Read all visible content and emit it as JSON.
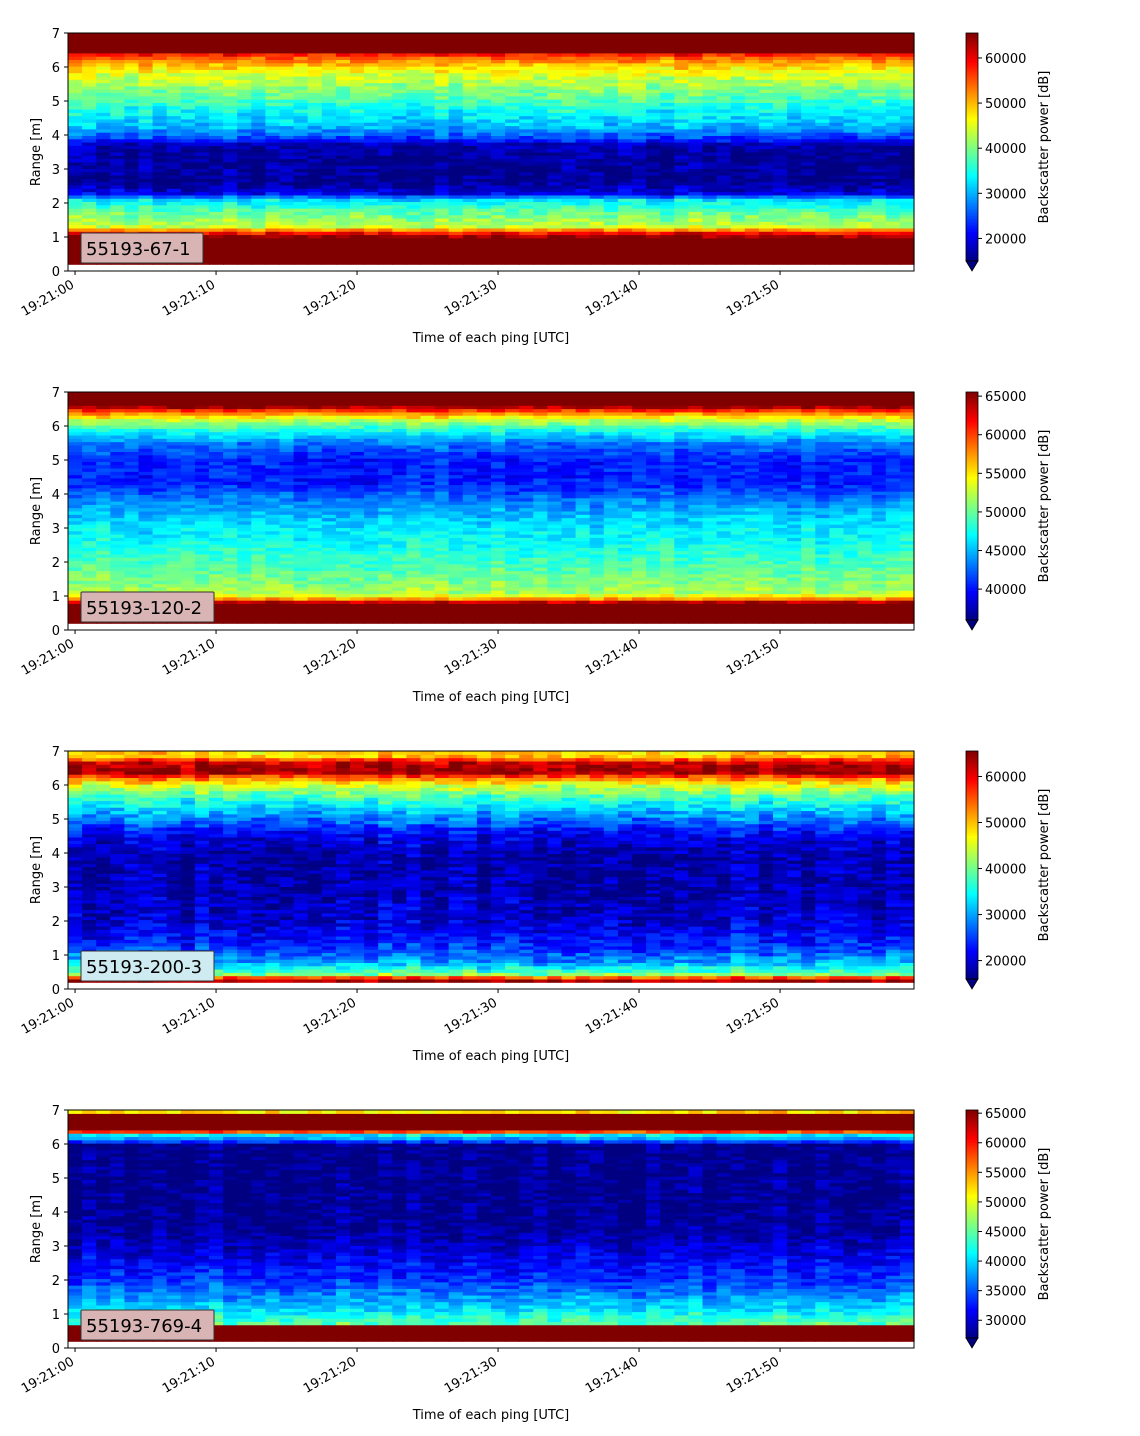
{
  "chart_data": [
    {
      "type": "heatmap",
      "badge": "55193-67-1",
      "badge_color": "#d8b4b4",
      "xlabel": "Time of each ping [UTC]",
      "ylabel": "Range [m]",
      "ylim": [
        0,
        7
      ],
      "yticks": [
        "0",
        "1",
        "2",
        "3",
        "4",
        "5",
        "6",
        "7"
      ],
      "xticks": [
        "19:21:00",
        "19:21:10",
        "19:21:20",
        "19:21:30",
        "19:21:40",
        "19:21:50"
      ],
      "colorbar_label": "Backscatter power [dB]",
      "colorbar_range": [
        15000,
        65535
      ],
      "colorbar_ticks": [
        20000,
        30000,
        40000,
        50000,
        60000
      ],
      "colorbar_tick_labels": [
        "20000",
        "30000",
        "40000",
        "50000",
        "60000"
      ],
      "profile": [
        [
          0.2,
          65535
        ],
        [
          0.3,
          65535
        ],
        [
          1.0,
          65535
        ],
        [
          1.15,
          58000
        ],
        [
          1.3,
          44000
        ],
        [
          1.8,
          38000
        ],
        [
          2.1,
          33000
        ],
        [
          2.3,
          20000
        ],
        [
          2.6,
          16000
        ],
        [
          3.2,
          16000
        ],
        [
          3.7,
          17000
        ],
        [
          3.9,
          24000
        ],
        [
          4.2,
          30000
        ],
        [
          4.8,
          35000
        ],
        [
          5.3,
          40000
        ],
        [
          5.8,
          45000
        ],
        [
          6.1,
          50000
        ],
        [
          6.35,
          56000
        ],
        [
          6.45,
          65535
        ],
        [
          7.0,
          65535
        ]
      ],
      "noise": 5500
    },
    {
      "type": "heatmap",
      "badge": "55193-120-2",
      "badge_color": "#d8b4b4",
      "xlabel": "Time of each ping [UTC]",
      "ylabel": "Range [m]",
      "ylim": [
        0,
        7
      ],
      "yticks": [
        "0",
        "1",
        "2",
        "3",
        "4",
        "5",
        "6",
        "7"
      ],
      "xticks": [
        "19:21:00",
        "19:21:10",
        "19:21:20",
        "19:21:30",
        "19:21:40",
        "19:21:50"
      ],
      "colorbar_label": "Backscatter power [dB]",
      "colorbar_range": [
        36000,
        65535
      ],
      "colorbar_ticks": [
        40000,
        45000,
        50000,
        55000,
        60000,
        65000
      ],
      "colorbar_tick_labels": [
        "40000",
        "45000",
        "50000",
        "55000",
        "60000",
        "65000"
      ],
      "profile": [
        [
          0.2,
          65535
        ],
        [
          0.25,
          65535
        ],
        [
          0.8,
          65535
        ],
        [
          0.95,
          56000
        ],
        [
          1.1,
          52000
        ],
        [
          1.8,
          49500
        ],
        [
          2.5,
          47500
        ],
        [
          3.2,
          46000
        ],
        [
          3.8,
          43500
        ],
        [
          4.3,
          40500
        ],
        [
          5.0,
          40500
        ],
        [
          5.5,
          43000
        ],
        [
          5.9,
          48000
        ],
        [
          6.2,
          53000
        ],
        [
          6.4,
          58000
        ],
        [
          6.6,
          65535
        ],
        [
          7.0,
          65535
        ]
      ],
      "noise": 2800
    },
    {
      "type": "heatmap",
      "badge": "55193-200-3",
      "badge_color": "#cdebf0",
      "xlabel": "Time of each ping [UTC]",
      "ylabel": "Range [m]",
      "ylim": [
        0,
        7
      ],
      "yticks": [
        "0",
        "1",
        "2",
        "3",
        "4",
        "5",
        "6",
        "7"
      ],
      "xticks": [
        "19:21:00",
        "19:21:10",
        "19:21:20",
        "19:21:30",
        "19:21:40",
        "19:21:50"
      ],
      "colorbar_label": "Backscatter power [dB]",
      "colorbar_range": [
        16000,
        65535
      ],
      "colorbar_ticks": [
        20000,
        30000,
        40000,
        50000,
        60000
      ],
      "colorbar_tick_labels": [
        "20000",
        "30000",
        "40000",
        "50000",
        "60000"
      ],
      "profile": [
        [
          0.2,
          65535
        ],
        [
          0.3,
          62000
        ],
        [
          0.45,
          40000
        ],
        [
          0.8,
          30000
        ],
        [
          1.3,
          24000
        ],
        [
          2.0,
          20000
        ],
        [
          3.0,
          18500
        ],
        [
          4.0,
          18000
        ],
        [
          4.6,
          22000
        ],
        [
          5.0,
          28000
        ],
        [
          5.5,
          35000
        ],
        [
          6.0,
          45000
        ],
        [
          6.25,
          55000
        ],
        [
          6.4,
          65535
        ],
        [
          6.65,
          62000
        ],
        [
          6.85,
          50000
        ],
        [
          7.0,
          48000
        ]
      ],
      "noise": 6500
    },
    {
      "type": "heatmap",
      "badge": "55193-769-4",
      "badge_color": "#d8b4b4",
      "xlabel": "Time of each ping [UTC]",
      "ylabel": "Range [m]",
      "ylim": [
        0,
        7
      ],
      "yticks": [
        "0",
        "1",
        "2",
        "3",
        "4",
        "5",
        "6",
        "7"
      ],
      "xticks": [
        "19:21:00",
        "19:21:10",
        "19:21:20",
        "19:21:30",
        "19:21:40",
        "19:21:50"
      ],
      "colorbar_label": "Backscatter power [dB]",
      "colorbar_range": [
        27000,
        65535
      ],
      "colorbar_ticks": [
        30000,
        35000,
        40000,
        45000,
        50000,
        55000,
        60000,
        65000
      ],
      "colorbar_tick_labels": [
        "30000",
        "35000",
        "40000",
        "45000",
        "50000",
        "55000",
        "60000",
        "65000"
      ],
      "profile": [
        [
          0.2,
          65535
        ],
        [
          0.3,
          65535
        ],
        [
          0.65,
          65535
        ],
        [
          0.72,
          45000
        ],
        [
          1.2,
          40000
        ],
        [
          2.0,
          34000
        ],
        [
          3.0,
          30000
        ],
        [
          3.5,
          28000
        ],
        [
          6.0,
          27500
        ],
        [
          6.1,
          36000
        ],
        [
          6.3,
          42000
        ],
        [
          6.4,
          65535
        ],
        [
          6.9,
          65535
        ],
        [
          7.0,
          40000
        ]
      ],
      "noise": 4200
    }
  ]
}
